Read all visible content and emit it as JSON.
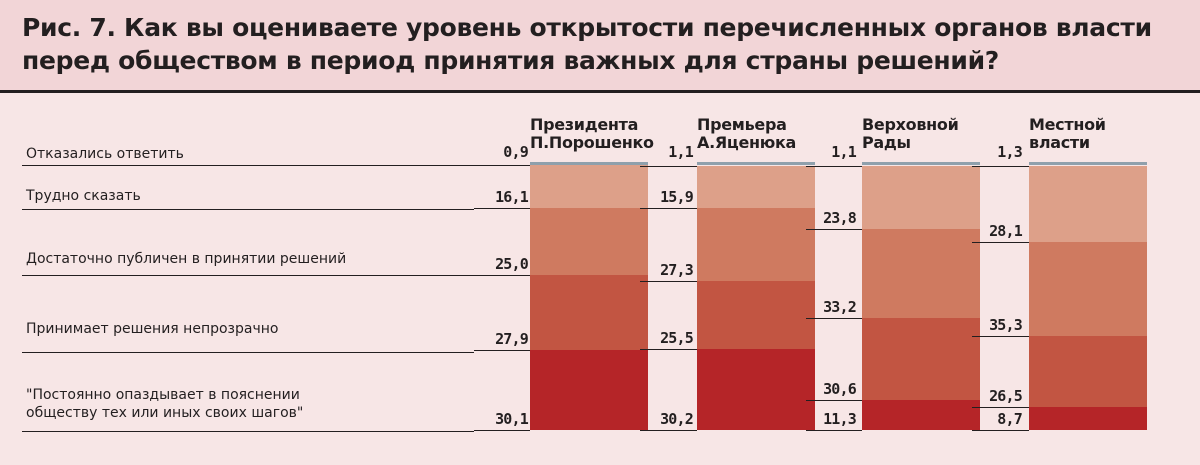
{
  "title": "Рис. 7. Как вы оцениваете уровень открытости перечисленных органов власти перед обществом в период принятия важных для страны решений?",
  "colors": {
    "no_answer": "#8fa0ac",
    "hard_to_say": "#dda089",
    "public": "#cf7a60",
    "non_transparent": "#c25542",
    "late": "#b52528",
    "text": "#231f20"
  },
  "chart_data": {
    "type": "bar",
    "stacked": true,
    "percent": true,
    "categories": [
      [
        "Президента",
        "П.Порошенко"
      ],
      [
        "Премьера",
        "А.Яценюка"
      ],
      [
        "Верховной",
        "Рады"
      ],
      [
        "Местной",
        "власти"
      ]
    ],
    "series": [
      {
        "name": [
          "Отказались ответить"
        ],
        "values": [
          0.9,
          1.1,
          1.1,
          1.3
        ]
      },
      {
        "name": [
          "Трудно сказать"
        ],
        "values": [
          16.1,
          15.9,
          23.8,
          28.1
        ]
      },
      {
        "name": [
          "Достаточно публичен в принятии решений"
        ],
        "values": [
          25.0,
          27.3,
          33.2,
          35.3
        ]
      },
      {
        "name": [
          "Принимает решения непрозрачно"
        ],
        "values": [
          27.9,
          25.5,
          30.6,
          26.5
        ]
      },
      {
        "name": [
          "\"Постоянно опаздывает в пояснении",
          "обществу тех или иных своих шагов\""
        ],
        "values": [
          30.1,
          30.2,
          11.3,
          8.7
        ]
      }
    ]
  }
}
